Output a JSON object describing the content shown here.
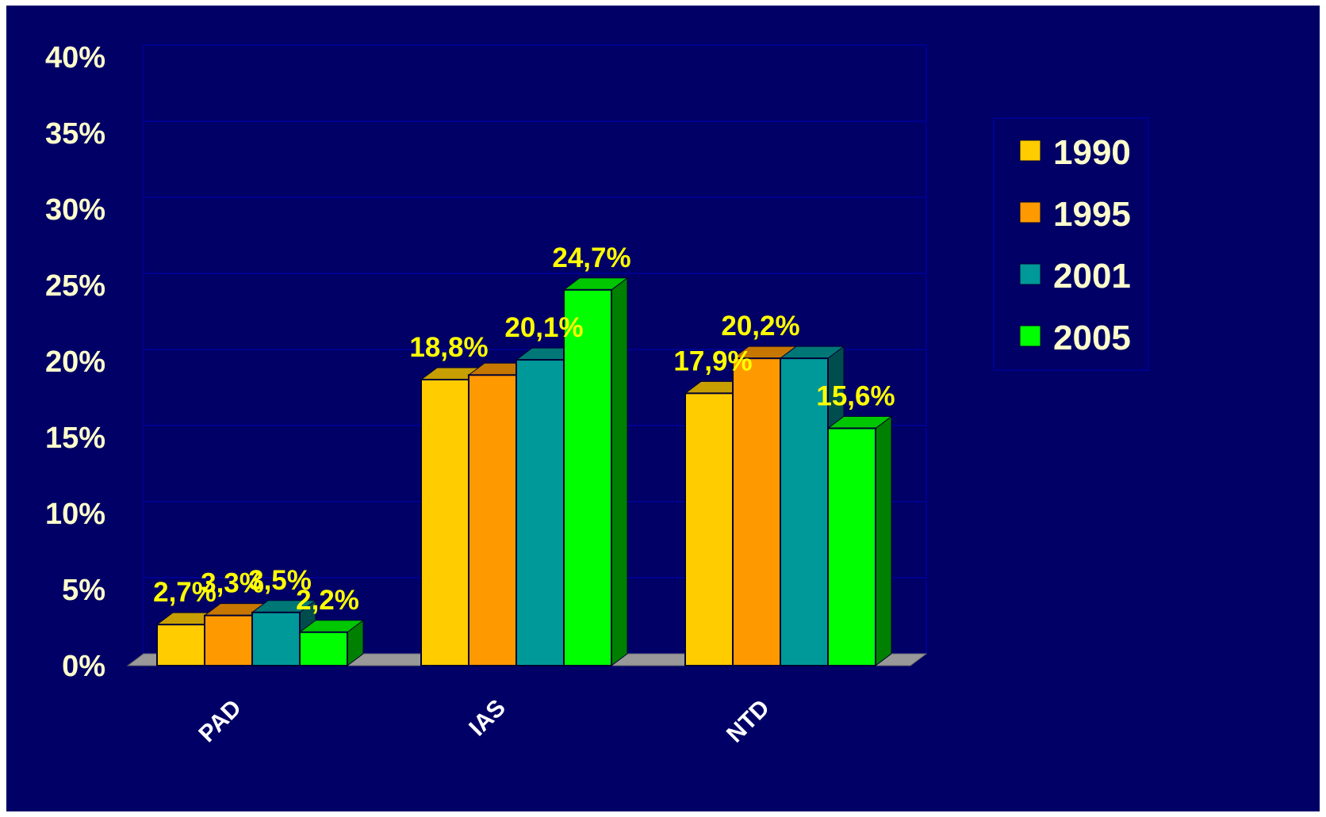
{
  "chart_data": {
    "type": "bar",
    "title": "",
    "xlabel": "",
    "ylabel": "",
    "categories": [
      "PAD",
      "IAS",
      "NTD"
    ],
    "series": [
      {
        "name": "1990",
        "values": [
          2.7,
          18.8,
          17.9
        ],
        "labels": [
          "2,7%",
          "18,8%",
          "17,9%"
        ],
        "color": "#ffcc00"
      },
      {
        "name": "1995",
        "values": [
          3.3,
          19.1,
          20.2
        ],
        "labels": [
          "3,3%",
          "",
          "20,2%"
        ],
        "color": "#ff9900"
      },
      {
        "name": "2001",
        "values": [
          3.5,
          20.1,
          20.2
        ],
        "labels": [
          "3,5%",
          "20,1%",
          ""
        ],
        "color": "#009999"
      },
      {
        "name": "2005",
        "values": [
          2.2,
          24.7,
          15.6
        ],
        "labels": [
          "2,2%",
          "24,7%",
          "15,6%"
        ],
        "color": "#00ff00"
      }
    ],
    "ylim": [
      0,
      40
    ],
    "yticks": [
      "0%",
      "5%",
      "10%",
      "15%",
      "20%",
      "25%",
      "30%",
      "35%",
      "40%"
    ],
    "grid": true,
    "legend": "right",
    "style": "3d-bar",
    "colors": {
      "background": "#000066",
      "gridline": "#00008f",
      "floor": "#999999",
      "tick_text": "#ffffcc",
      "data_label": "#ffff00",
      "category_text": "#ffffff"
    }
  }
}
